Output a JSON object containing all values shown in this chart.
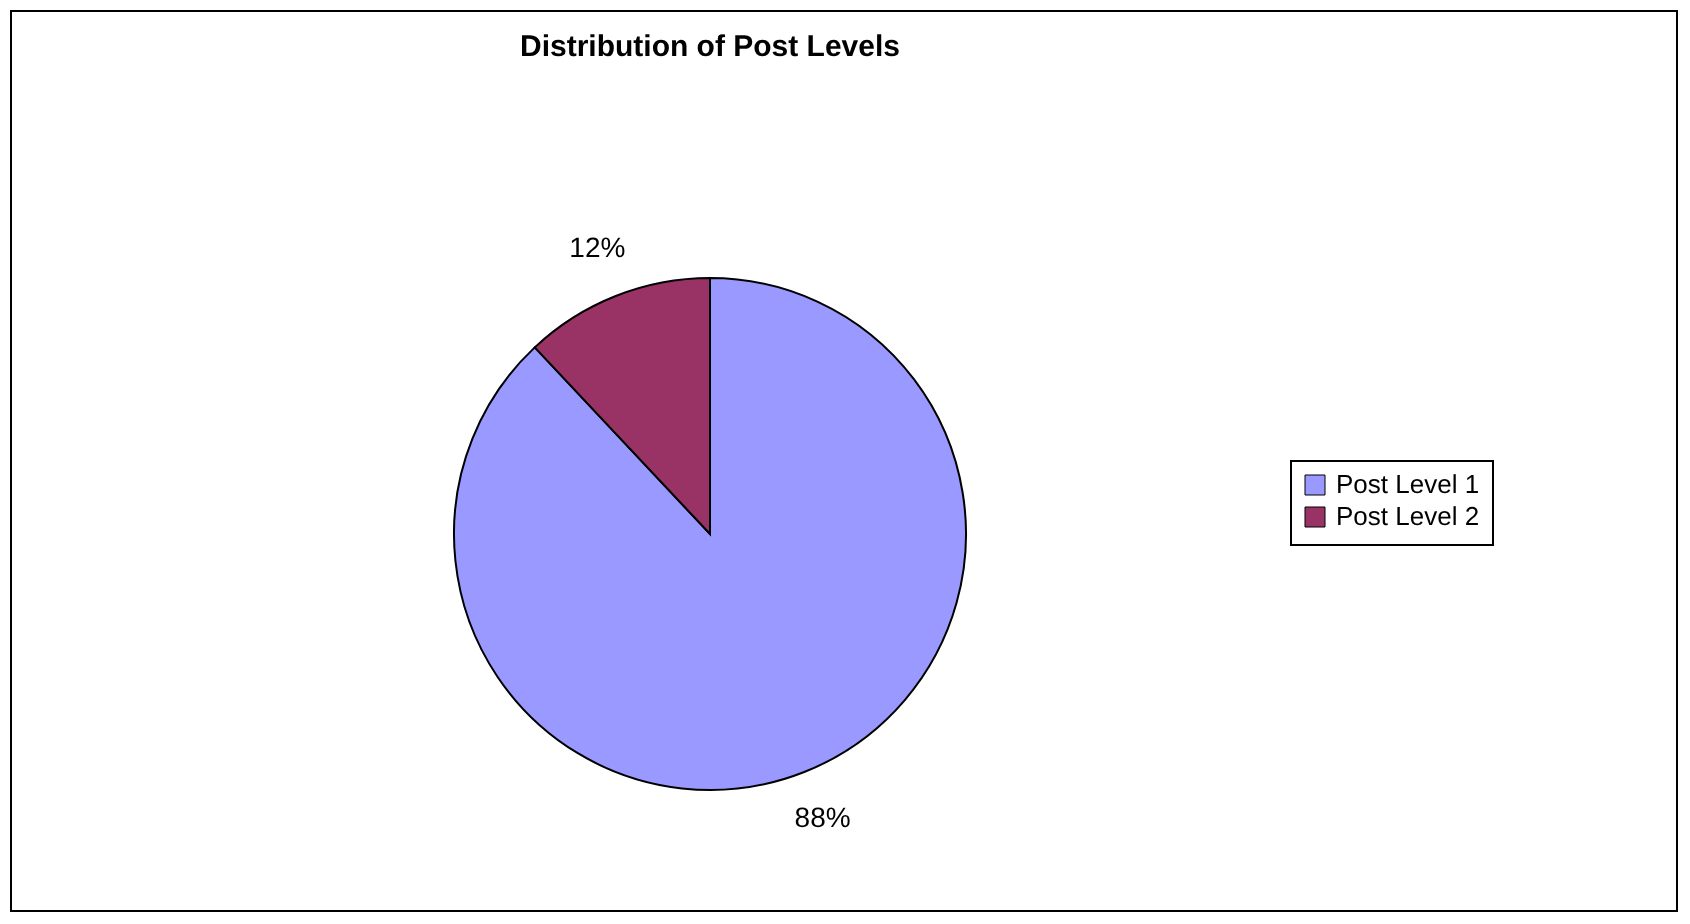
{
  "chart_data": {
    "type": "pie",
    "title": "Distribution of Post Levels",
    "categories": [
      "Post Level 1",
      "Post Level 2"
    ],
    "values": [
      88,
      12
    ],
    "colors": [
      "#9999ff",
      "#993366"
    ],
    "value_labels": [
      "88%",
      "12%"
    ],
    "legend": "right"
  }
}
